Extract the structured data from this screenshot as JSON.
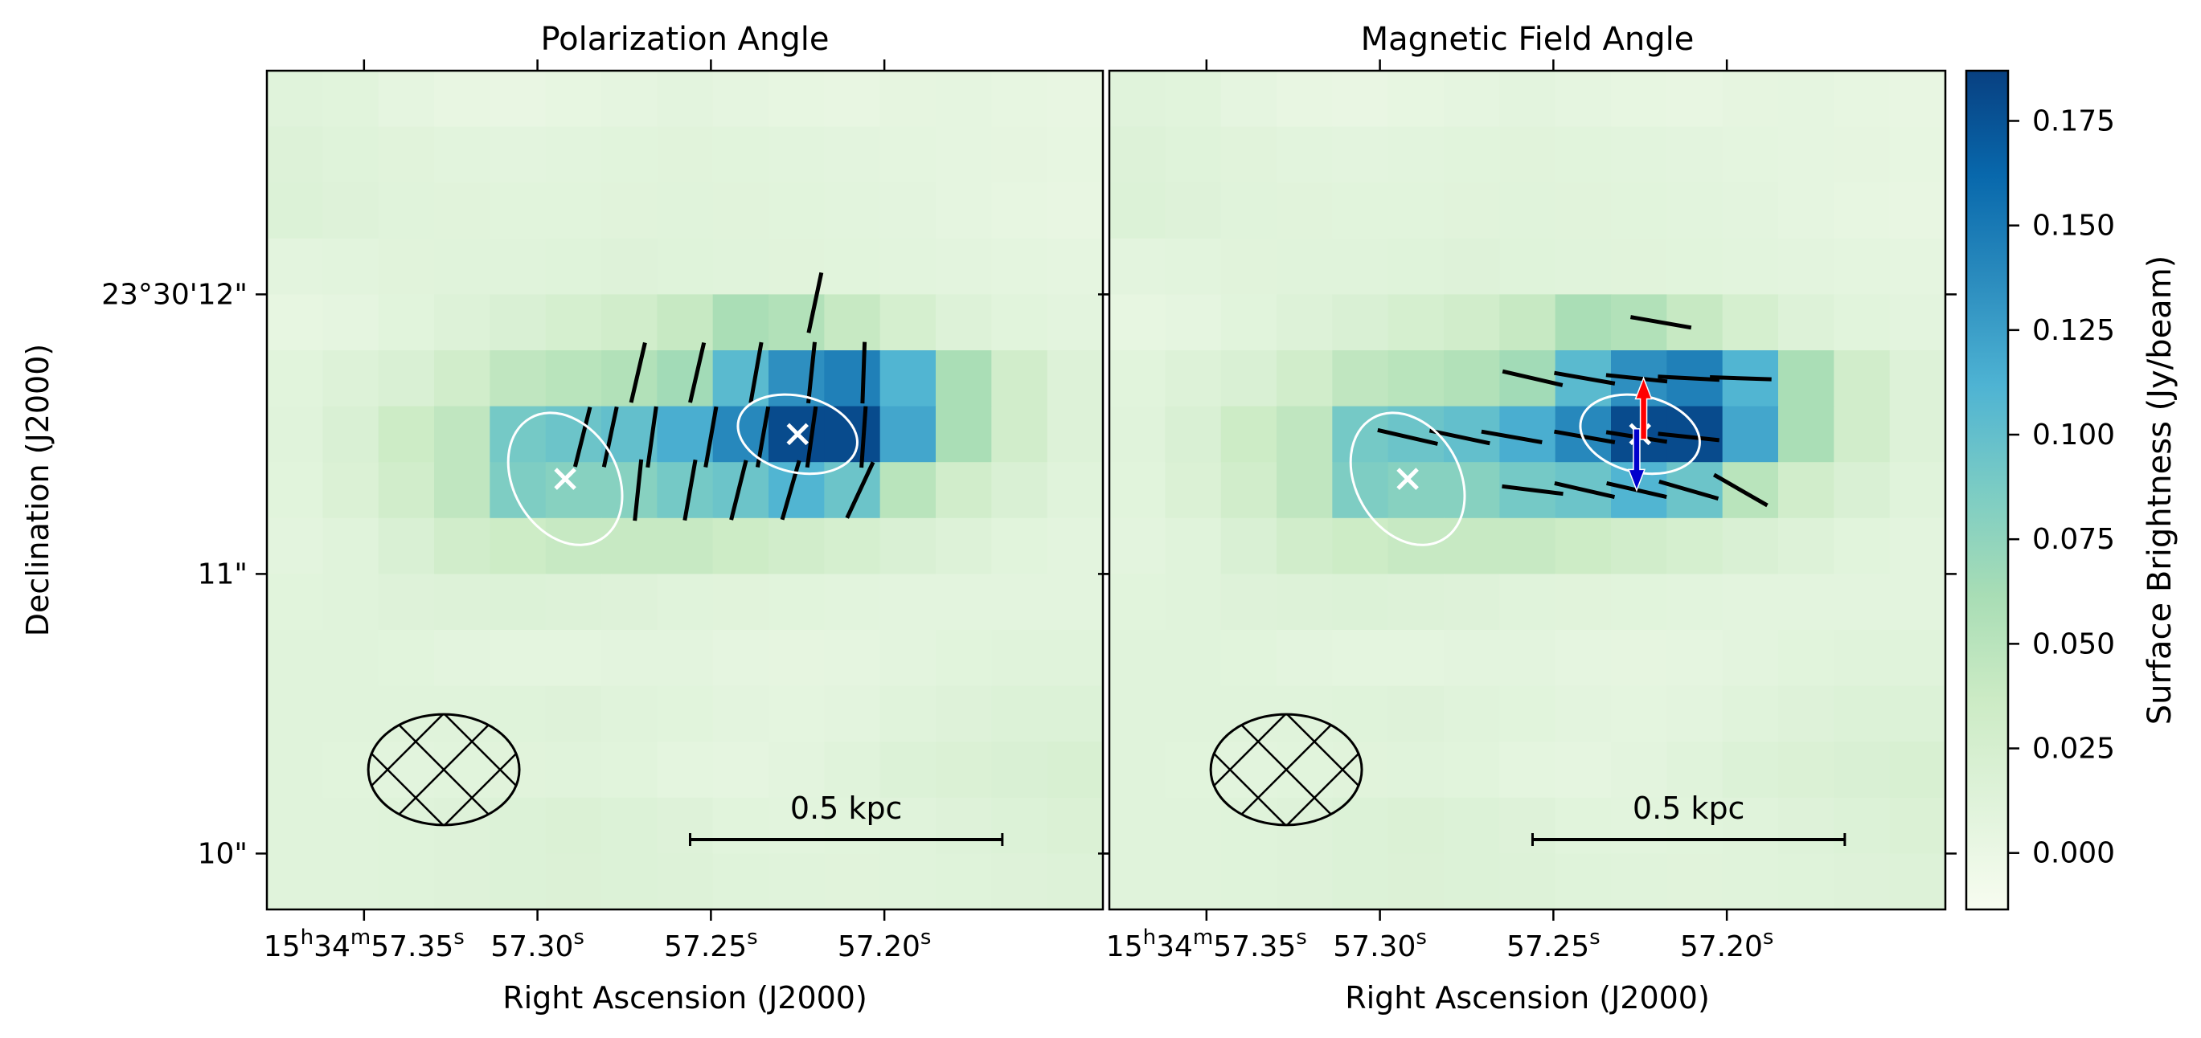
{
  "chart_data": {
    "type": "heatmap",
    "colorbar": {
      "label": "Surface Brightness (Jy/beam)",
      "range": [
        -0.0135,
        0.187
      ],
      "ticks": [
        "0.000",
        "0.025",
        "0.050",
        "0.075",
        "0.100",
        "0.125",
        "0.150",
        "0.175"
      ],
      "tick_values": [
        0,
        0.025,
        0.05,
        0.075,
        0.1,
        0.125,
        0.15,
        0.175
      ],
      "colors": [
        "#f7fcf0",
        "#e0f3db",
        "#ccebc5",
        "#a8ddb5",
        "#7bccc4",
        "#4eb3d3",
        "#2b8cbe",
        "#0868ac",
        "#084081"
      ]
    },
    "axes": {
      "xlabel": "Right Ascension (J2000)",
      "ylabel": "Declination (J2000)",
      "ra_range_s": [
        57.378,
        57.137
      ],
      "ra_ticks": [
        {
          "value": 57.35,
          "h": "15",
          "m": "34",
          "s": "57.35",
          "unit_h": "h",
          "unit_m": "m",
          "unit_s": "s",
          "full": true
        },
        {
          "value": 57.3,
          "s": "57.30",
          "unit_s": "s",
          "full": false
        },
        {
          "value": 57.25,
          "s": "57.25",
          "unit_s": "s",
          "full": false
        },
        {
          "value": 57.2,
          "s": "57.20",
          "unit_s": "s",
          "full": false
        }
      ],
      "dec_range_arcsec": [
        9.8,
        12.8
      ],
      "dec_ticks": [
        {
          "value": 12,
          "label": "23°30'12\""
        },
        {
          "value": 11,
          "label": "11\""
        },
        {
          "value": 10,
          "label": "10\""
        }
      ]
    },
    "grid": {
      "cols": 15,
      "rows": 15,
      "values": [
        [
          0.012,
          0.01,
          0.006,
          0.003,
          0.002,
          0.004,
          0.006,
          0.008,
          0.006,
          0.004,
          0.003,
          0.005,
          0.006,
          0.004,
          0.003
        ],
        [
          0.015,
          0.013,
          0.011,
          0.009,
          0.008,
          0.009,
          0.01,
          0.011,
          0.01,
          0.009,
          0.008,
          0.007,
          0.006,
          0.005,
          0.004
        ],
        [
          0.016,
          0.014,
          0.012,
          0.011,
          0.01,
          0.01,
          0.011,
          0.012,
          0.011,
          0.01,
          0.009,
          0.008,
          0.006,
          0.004,
          0.003
        ],
        [
          0.008,
          0.009,
          0.011,
          0.012,
          0.012,
          0.013,
          0.014,
          0.013,
          0.012,
          0.011,
          0.01,
          0.009,
          0.008,
          0.007,
          0.006
        ],
        [
          0.004,
          0.006,
          0.01,
          0.015,
          0.02,
          0.025,
          0.03,
          0.04,
          0.06,
          0.055,
          0.04,
          0.025,
          0.015,
          0.01,
          0.008
        ],
        [
          0.01,
          0.015,
          0.02,
          0.03,
          0.045,
          0.05,
          0.055,
          0.065,
          0.105,
          0.135,
          0.145,
          0.11,
          0.06,
          0.03,
          0.015
        ],
        [
          0.012,
          0.02,
          0.035,
          0.045,
          0.09,
          0.095,
          0.1,
          0.115,
          0.14,
          0.18,
          0.18,
          0.12,
          0.06,
          0.03,
          0.015
        ],
        [
          0.01,
          0.018,
          0.03,
          0.045,
          0.085,
          0.08,
          0.08,
          0.09,
          0.095,
          0.11,
          0.095,
          0.05,
          0.03,
          0.02,
          0.012
        ],
        [
          0.008,
          0.012,
          0.02,
          0.03,
          0.035,
          0.04,
          0.04,
          0.04,
          0.035,
          0.03,
          0.025,
          0.02,
          0.015,
          0.01,
          0.008
        ],
        [
          0.01,
          0.012,
          0.014,
          0.015,
          0.016,
          0.015,
          0.014,
          0.012,
          0.011,
          0.01,
          0.009,
          0.008,
          0.008,
          0.008,
          0.008
        ],
        [
          0.012,
          0.012,
          0.01,
          0.008,
          0.007,
          0.007,
          0.008,
          0.008,
          0.006,
          0.005,
          0.006,
          0.008,
          0.01,
          0.012,
          0.012
        ],
        [
          0.012,
          0.012,
          0.012,
          0.012,
          0.013,
          0.014,
          0.012,
          0.01,
          0.008,
          0.007,
          0.008,
          0.012,
          0.014,
          0.016,
          0.016
        ],
        [
          0.012,
          0.01,
          0.009,
          0.01,
          0.011,
          0.012,
          0.01,
          0.007,
          0.006,
          0.008,
          0.012,
          0.016,
          0.018,
          0.02,
          0.022
        ],
        [
          0.012,
          0.012,
          0.013,
          0.014,
          0.016,
          0.018,
          0.016,
          0.014,
          0.01,
          0.009,
          0.01,
          0.012,
          0.014,
          0.016,
          0.018
        ],
        [
          0.012,
          0.012,
          0.013,
          0.014,
          0.016,
          0.017,
          0.016,
          0.015,
          0.013,
          0.012,
          0.011,
          0.012,
          0.013,
          0.014,
          0.015
        ]
      ]
    },
    "panels": [
      {
        "id": "polarization",
        "title": "Polarization Angle",
        "scale_bar_label": "0.5 kpc",
        "vectors": [
          {
            "ra": 57.271,
            "dec": 11.72,
            "angle_deg": 13
          },
          {
            "ra": 57.254,
            "dec": 11.72,
            "angle_deg": 13
          },
          {
            "ra": 57.237,
            "dec": 11.72,
            "angle_deg": 10
          },
          {
            "ra": 57.221,
            "dec": 11.72,
            "angle_deg": 6
          },
          {
            "ra": 57.206,
            "dec": 11.72,
            "angle_deg": 2
          },
          {
            "ra": 57.22,
            "dec": 11.97,
            "angle_deg": 12
          },
          {
            "ra": 57.287,
            "dec": 11.49,
            "angle_deg": 14
          },
          {
            "ra": 57.279,
            "dec": 11.49,
            "angle_deg": 12
          },
          {
            "ra": 57.267,
            "dec": 11.49,
            "angle_deg": 8
          },
          {
            "ra": 57.25,
            "dec": 11.49,
            "angle_deg": 10
          },
          {
            "ra": 57.235,
            "dec": 11.49,
            "angle_deg": 10
          },
          {
            "ra": 57.221,
            "dec": 11.49,
            "angle_deg": 8
          },
          {
            "ra": 57.206,
            "dec": 11.49,
            "angle_deg": 4
          },
          {
            "ra": 57.271,
            "dec": 11.3,
            "angle_deg": 6
          },
          {
            "ra": 57.256,
            "dec": 11.3,
            "angle_deg": 10
          },
          {
            "ra": 57.242,
            "dec": 11.3,
            "angle_deg": 14
          },
          {
            "ra": 57.227,
            "dec": 11.3,
            "angle_deg": 16
          },
          {
            "ra": 57.207,
            "dec": 11.3,
            "angle_deg": 25
          }
        ]
      },
      {
        "id": "magnetic",
        "title": "Magnetic Field Angle",
        "scale_bar_label": "0.5 kpc",
        "vectors": [
          {
            "ra": 57.219,
            "dec": 11.9,
            "angle_deg": 100
          },
          {
            "ra": 57.256,
            "dec": 11.7,
            "angle_deg": 103
          },
          {
            "ra": 57.241,
            "dec": 11.7,
            "angle_deg": 100
          },
          {
            "ra": 57.226,
            "dec": 11.7,
            "angle_deg": 96
          },
          {
            "ra": 57.211,
            "dec": 11.7,
            "angle_deg": 93
          },
          {
            "ra": 57.196,
            "dec": 11.7,
            "angle_deg": 92
          },
          {
            "ra": 57.292,
            "dec": 11.49,
            "angle_deg": 103
          },
          {
            "ra": 57.277,
            "dec": 11.49,
            "angle_deg": 102
          },
          {
            "ra": 57.262,
            "dec": 11.49,
            "angle_deg": 100
          },
          {
            "ra": 57.241,
            "dec": 11.49,
            "angle_deg": 100
          },
          {
            "ra": 57.226,
            "dec": 11.49,
            "angle_deg": 99
          },
          {
            "ra": 57.211,
            "dec": 11.49,
            "angle_deg": 96
          },
          {
            "ra": 57.256,
            "dec": 11.3,
            "angle_deg": 97
          },
          {
            "ra": 57.241,
            "dec": 11.3,
            "angle_deg": 103
          },
          {
            "ra": 57.226,
            "dec": 11.3,
            "angle_deg": 103
          },
          {
            "ra": 57.211,
            "dec": 11.3,
            "angle_deg": 106
          },
          {
            "ra": 57.196,
            "dec": 11.3,
            "angle_deg": 120
          }
        ],
        "arrows": [
          {
            "color": "#ff0000",
            "ra": 57.224,
            "dec": 11.58,
            "direction": "up",
            "length_arcsec": 0.22
          },
          {
            "color": "#0000cc",
            "ra": 57.226,
            "dec": 11.42,
            "direction": "down",
            "length_arcsec": 0.22
          }
        ]
      }
    ],
    "sources": [
      {
        "ra": 57.292,
        "dec": 11.34,
        "ellipse_major_arcsec": 0.44,
        "ellipse_minor_arcsec": 0.19,
        "ellipse_pa_deg": 30
      },
      {
        "ra": 57.225,
        "dec": 11.5,
        "ellipse_major_arcsec": 0.38,
        "ellipse_minor_arcsec": 0.14,
        "ellipse_pa_deg": 77
      }
    ],
    "beam": {
      "ra": 57.327,
      "dec": 10.3,
      "major_arcsec": 0.45,
      "minor_arcsec": 0.22,
      "pa_deg": 90,
      "hatch": "cross"
    },
    "scale_bar": {
      "label": "0.5 kpc",
      "ra_start": 57.256,
      "ra_end": 57.166,
      "dec": 10.05
    }
  }
}
